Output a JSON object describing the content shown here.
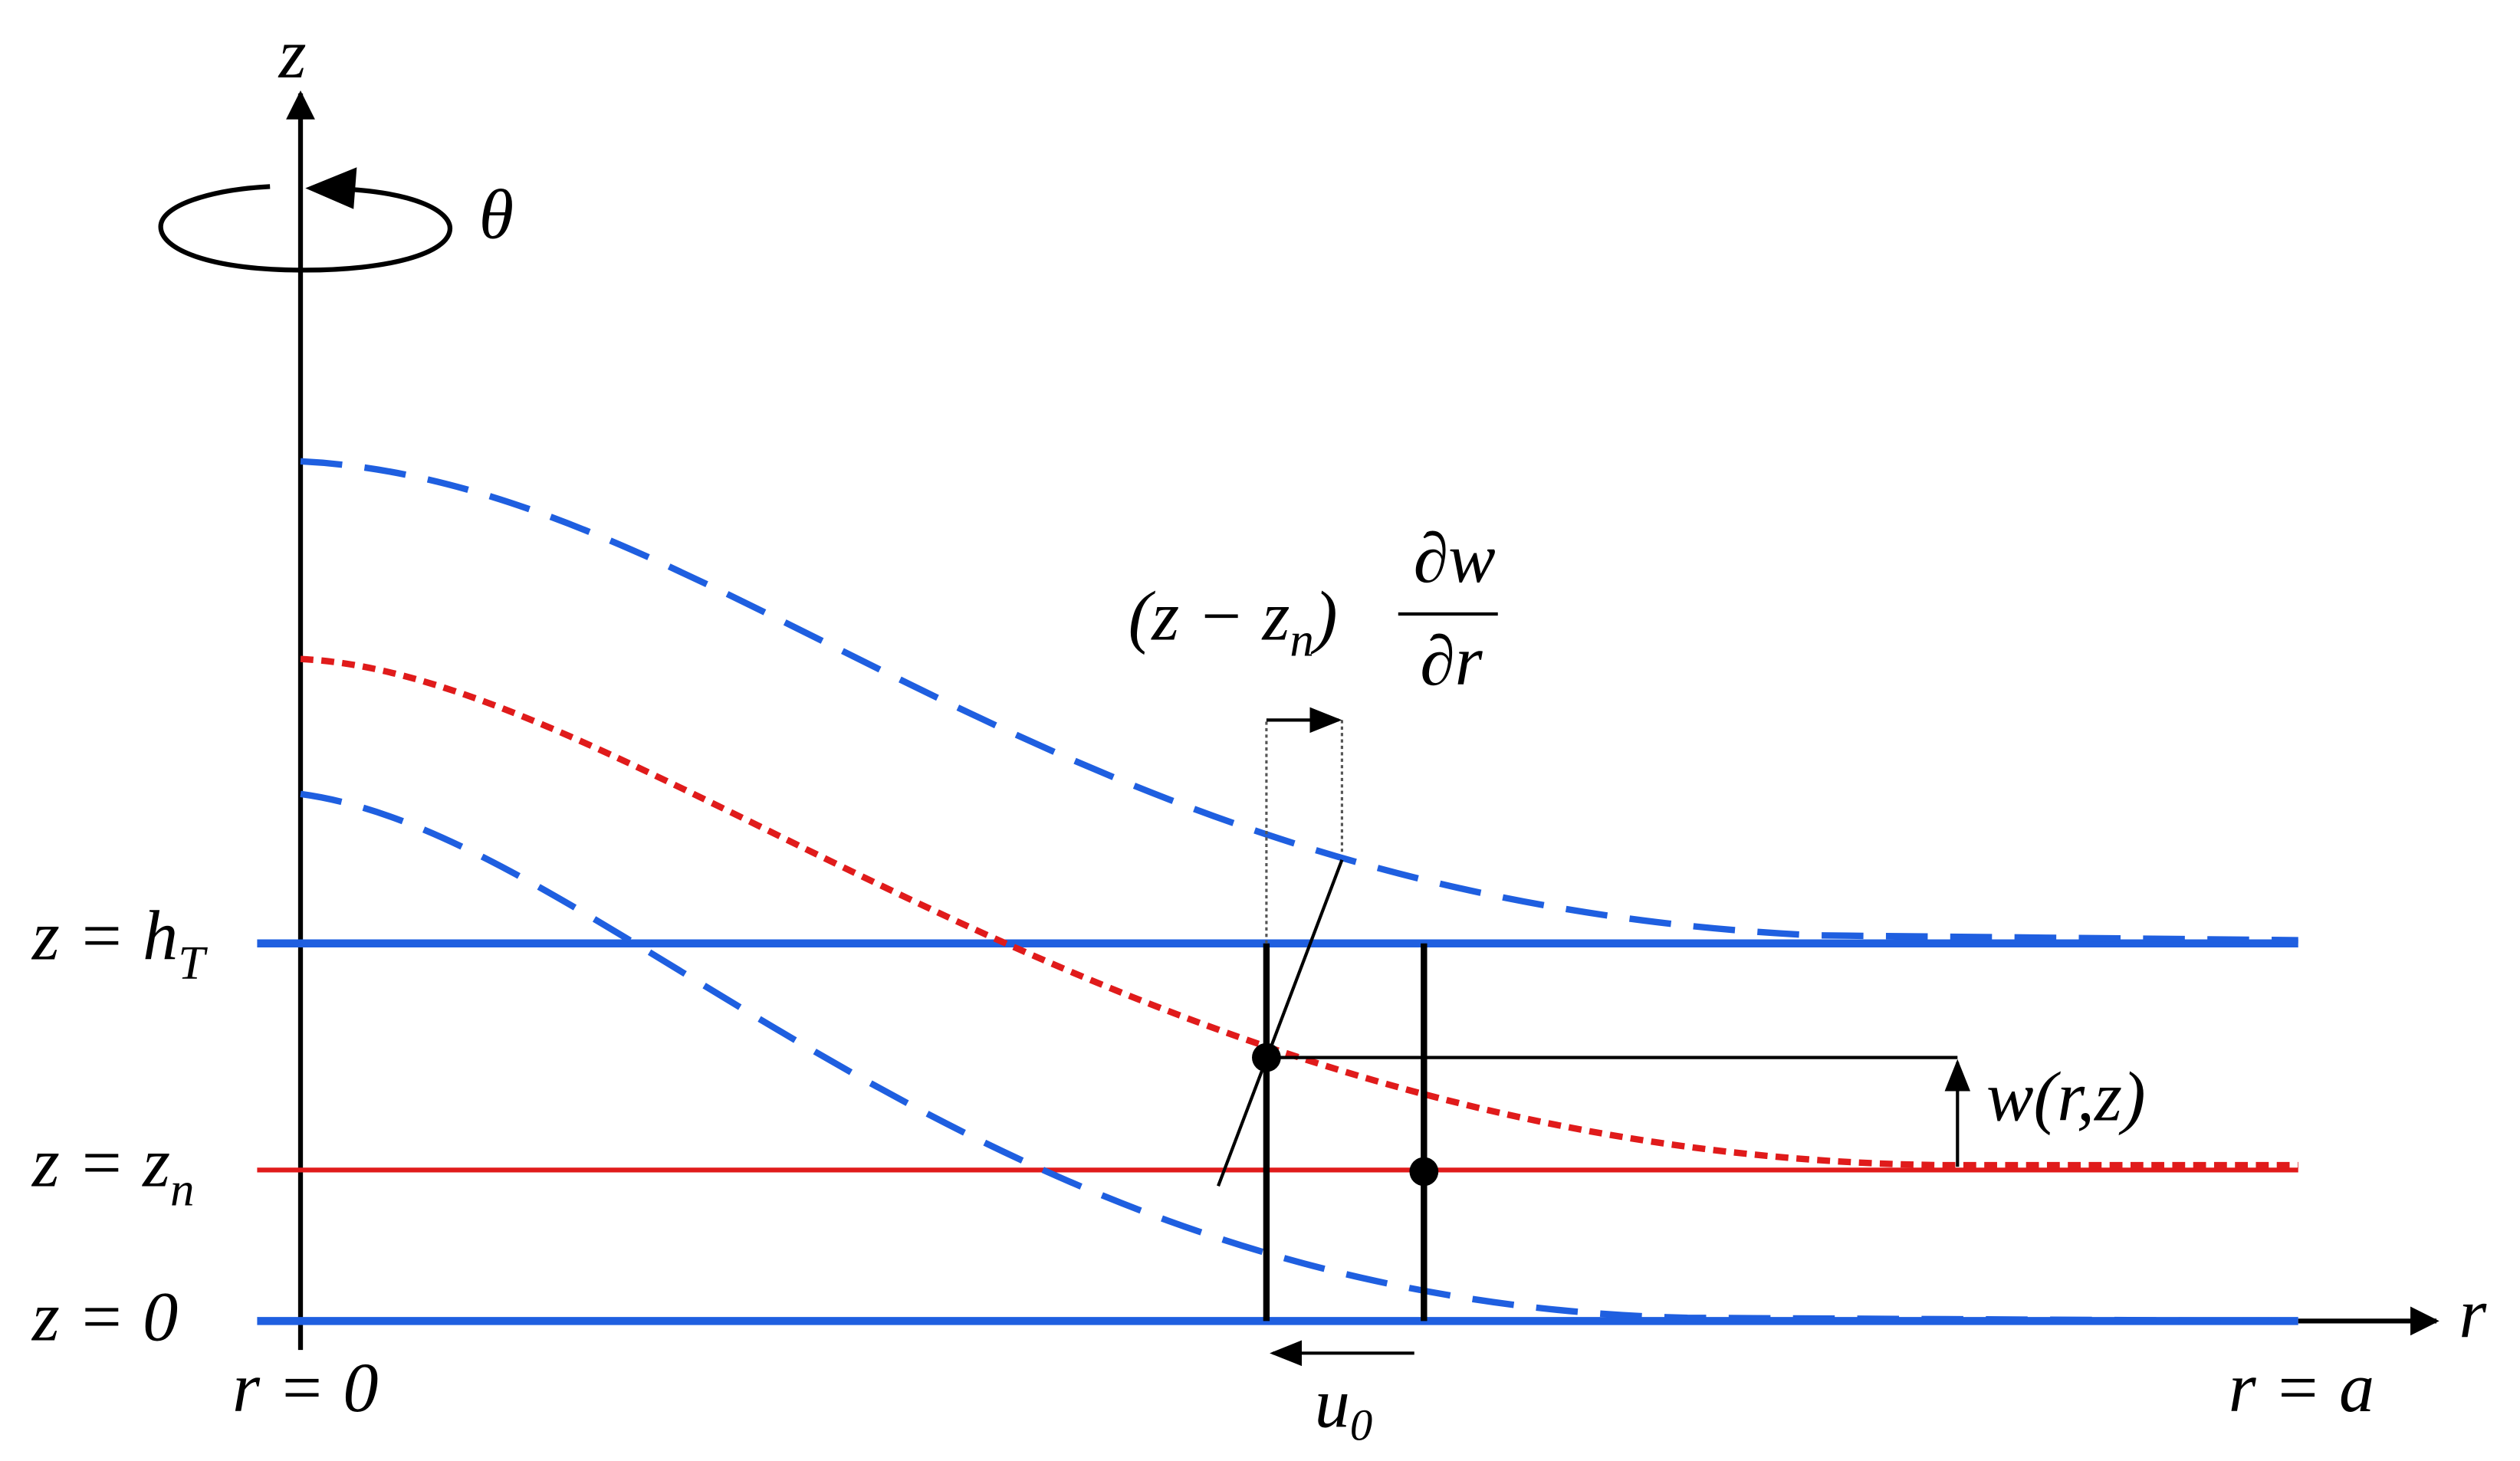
{
  "axes": {
    "z": "z",
    "theta": "θ",
    "r": "r"
  },
  "levels": {
    "top": {
      "text": "z = h",
      "sub": "T"
    },
    "neutral": {
      "text": "z = z",
      "sub": "n"
    },
    "bottom": {
      "text": "z = 0"
    }
  },
  "ends": {
    "left": "r = 0",
    "right": "r = a"
  },
  "annotations": {
    "displacement": {
      "text": "u",
      "sub": "0"
    },
    "deflection": "w(r,z)",
    "rotation_term": {
      "open": "(z − z",
      "sub": "n",
      "close": ")",
      "numerator": "∂w",
      "denominator": "∂r"
    }
  }
}
